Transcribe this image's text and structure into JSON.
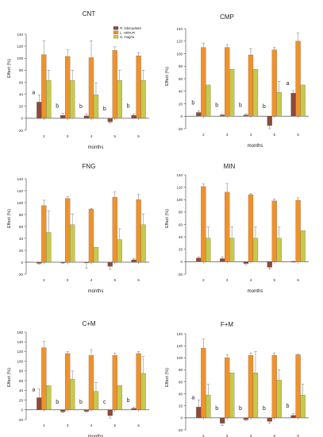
{
  "colors": {
    "r_tubicapitata": "#8b4a3a",
    "l_sativum": "#f0912a",
    "d_magna": "#c7c94a",
    "axis": "#555555"
  },
  "chart_data": [
    {
      "type": "bar",
      "title": "CNT",
      "xlabel": "months",
      "ylabel": "Effect (%)",
      "ylim": [
        -20,
        140
      ],
      "yticks": [
        -20,
        0,
        20,
        40,
        60,
        80,
        100,
        120,
        140
      ],
      "categories": [
        "2",
        "3",
        "4",
        "5",
        "6"
      ],
      "legend_position": "top-right",
      "series": [
        {
          "name": "R. tubicapitata",
          "color_key": "r_tubicapitata",
          "values": [
            27,
            5,
            4,
            -6,
            5
          ],
          "errors": [
            12,
            3,
            3,
            2,
            2
          ]
        },
        {
          "name": "L. sativum",
          "color_key": "l_sativum",
          "values": [
            106,
            103,
            101,
            113,
            104
          ],
          "errors": [
            23,
            11,
            28,
            6,
            5
          ]
        },
        {
          "name": "D. magna",
          "color_key": "d_magna",
          "values": [
            63,
            63,
            39,
            63,
            63
          ],
          "errors": [
            17,
            17,
            20,
            17,
            17
          ]
        }
      ],
      "annotations": [
        {
          "category": "2",
          "text": "a"
        },
        {
          "category": "3",
          "text": "b"
        },
        {
          "category": "4",
          "text": "b"
        },
        {
          "category": "5",
          "text": "b"
        },
        {
          "category": "6",
          "text": "b"
        }
      ]
    },
    {
      "type": "bar",
      "title": "CMP",
      "xlabel": "months",
      "ylabel": "Effect (%)",
      "ylim": [
        -20,
        140
      ],
      "yticks": [
        -20,
        0,
        20,
        40,
        60,
        80,
        100,
        120,
        140
      ],
      "categories": [
        "2",
        "3",
        "4",
        "5",
        "6"
      ],
      "series": [
        {
          "name": "R. tubicapitata",
          "color_key": "r_tubicapitata",
          "values": [
            6,
            2,
            2,
            -15,
            37
          ],
          "errors": [
            3,
            1,
            2,
            5,
            4
          ]
        },
        {
          "name": "L. sativum",
          "color_key": "l_sativum",
          "values": [
            110,
            110,
            98,
            106,
            120
          ],
          "errors": [
            7,
            4,
            10,
            4,
            13
          ]
        },
        {
          "name": "D. magna",
          "color_key": "d_magna",
          "values": [
            50,
            75,
            75,
            38,
            50
          ],
          "errors": [
            0,
            0,
            0,
            18,
            0
          ]
        }
      ],
      "annotations": [
        {
          "category": "2",
          "text": "b"
        },
        {
          "category": "3",
          "text": "b"
        },
        {
          "category": "4",
          "text": "b"
        },
        {
          "category": "5",
          "text": "b"
        },
        {
          "category": "6",
          "text": "a"
        }
      ]
    },
    {
      "type": "bar",
      "title": "FNG",
      "xlabel": "months",
      "ylabel": "Effect (%)",
      "ylim": [
        -20,
        140
      ],
      "yticks": [
        -20,
        0,
        20,
        40,
        60,
        80,
        100,
        120,
        140
      ],
      "categories": [
        "2",
        "3",
        "4",
        "5",
        "6"
      ],
      "series": [
        {
          "name": "R. tubicapitata",
          "color_key": "r_tubicapitata",
          "values": [
            -2,
            -1,
            -1,
            -7,
            4
          ],
          "errors": [
            1,
            1,
            9,
            5,
            2
          ]
        },
        {
          "name": "L. sativum",
          "color_key": "l_sativum",
          "values": [
            95,
            107,
            89,
            109,
            105
          ],
          "errors": [
            9,
            3,
            1,
            9,
            9
          ]
        },
        {
          "name": "D. magna",
          "color_key": "d_magna",
          "values": [
            50,
            63,
            25,
            38,
            63
          ],
          "errors": [
            36,
            18,
            0,
            18,
            18
          ]
        }
      ],
      "annotations": []
    },
    {
      "type": "bar",
      "title": "MIN",
      "xlabel": "months",
      "ylabel": "Effect (%)",
      "ylim": [
        -20,
        140
      ],
      "yticks": [
        -20,
        0,
        20,
        40,
        60,
        80,
        100,
        120,
        140
      ],
      "categories": [
        "2",
        "3",
        "4",
        "5",
        "6"
      ],
      "series": [
        {
          "name": "R. tubicapitata",
          "color_key": "r_tubicapitata",
          "values": [
            6,
            5,
            -3,
            -9,
            0
          ],
          "errors": [
            2,
            3,
            2,
            3,
            1
          ]
        },
        {
          "name": "L. sativum",
          "color_key": "l_sativum",
          "values": [
            121,
            112,
            108,
            98,
            99
          ],
          "errors": [
            4,
            14,
            2,
            3,
            4
          ]
        },
        {
          "name": "D. magna",
          "color_key": "d_magna",
          "values": [
            38,
            38,
            38,
            38,
            50
          ],
          "errors": [
            18,
            18,
            18,
            18,
            0
          ]
        }
      ],
      "annotations": []
    },
    {
      "type": "bar",
      "title": "C+M",
      "xlabel": "months",
      "ylabel": "Effect (%)",
      "ylim": [
        -20,
        160
      ],
      "yticks": [
        -20,
        0,
        20,
        40,
        60,
        80,
        100,
        120,
        140,
        160
      ],
      "categories": [
        "2",
        "3",
        "4",
        "5",
        "6"
      ],
      "series": [
        {
          "name": "R. tubicapitata",
          "color_key": "r_tubicapitata",
          "values": [
            25,
            -4,
            -3,
            -12,
            3
          ],
          "errors": [
            18,
            2,
            2,
            5,
            3
          ]
        },
        {
          "name": "L. sativum",
          "color_key": "l_sativum",
          "values": [
            128,
            116,
            112,
            112,
            116
          ],
          "errors": [
            13,
            4,
            12,
            5,
            4
          ]
        },
        {
          "name": "D. magna",
          "color_key": "d_magna",
          "values": [
            50,
            63,
            38,
            50,
            75
          ],
          "errors": [
            0,
            17,
            18,
            0,
            35
          ]
        }
      ],
      "annotations": [
        {
          "category": "2",
          "text": "a"
        },
        {
          "category": "3",
          "text": "b"
        },
        {
          "category": "4",
          "text": "b"
        },
        {
          "category": "5",
          "text": "c"
        },
        {
          "category": "6",
          "text": "b"
        }
      ]
    },
    {
      "type": "bar",
      "title": "F+M",
      "xlabel": "months",
      "ylabel": "Effect (%)",
      "ylim": [
        -20,
        140
      ],
      "yticks": [
        -20,
        0,
        20,
        40,
        60,
        80,
        100,
        120,
        140
      ],
      "categories": [
        "2",
        "3",
        "4",
        "5",
        "6"
      ],
      "series": [
        {
          "name": "R. tubicapitata",
          "color_key": "r_tubicapitata",
          "values": [
            18,
            -9,
            -3,
            -6,
            4
          ],
          "errors": [
            12,
            4,
            2,
            3,
            3
          ]
        },
        {
          "name": "L. sativum",
          "color_key": "l_sativum",
          "values": [
            116,
            100,
            104,
            104,
            105
          ],
          "errors": [
            15,
            5,
            4,
            4,
            1
          ]
        },
        {
          "name": "D. magna",
          "color_key": "d_magna",
          "values": [
            38,
            75,
            75,
            63,
            38
          ],
          "errors": [
            18,
            0,
            35,
            17,
            18
          ]
        }
      ],
      "annotations": [
        {
          "category": "2",
          "text": "a"
        },
        {
          "category": "3",
          "text": "b"
        },
        {
          "category": "4",
          "text": "b"
        },
        {
          "category": "5",
          "text": "b"
        },
        {
          "category": "6",
          "text": "b"
        }
      ]
    }
  ]
}
